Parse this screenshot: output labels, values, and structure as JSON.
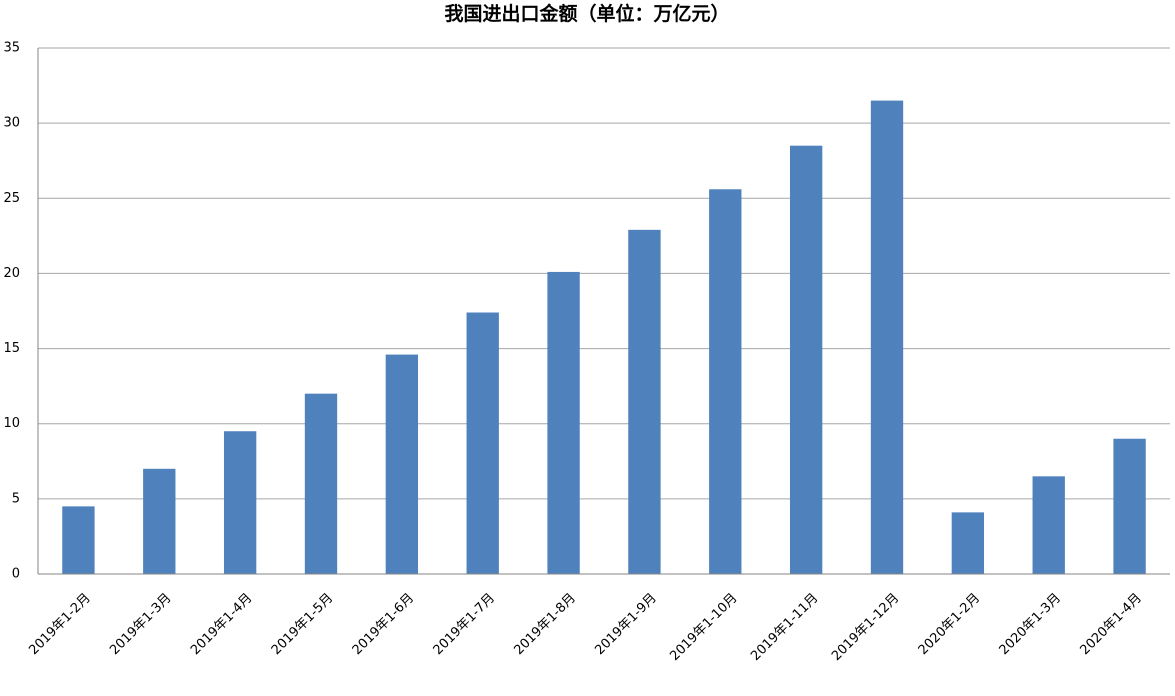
{
  "chart_data": {
    "type": "bar",
    "title": "我国进出口金额（单位：万亿元）",
    "categories": [
      "2019年1-2月",
      "2019年1-3月",
      "2019年1-4月",
      "2019年1-5月",
      "2019年1-6月",
      "2019年1-7月",
      "2019年1-8月",
      "2019年1-9月",
      "2019年1-10月",
      "2019年1-11月",
      "2019年1-12月",
      "2020年1-2月",
      "2020年1-3月",
      "2020年1-4月"
    ],
    "values": [
      4.5,
      7.0,
      9.5,
      12.0,
      14.6,
      17.4,
      20.1,
      22.9,
      25.6,
      28.5,
      31.5,
      4.1,
      6.5,
      9.0
    ],
    "color": "#4f81bd",
    "ylim": [
      0,
      35
    ],
    "yticks": [
      0,
      5,
      10,
      15,
      20,
      25,
      30,
      35
    ],
    "grid": true
  }
}
